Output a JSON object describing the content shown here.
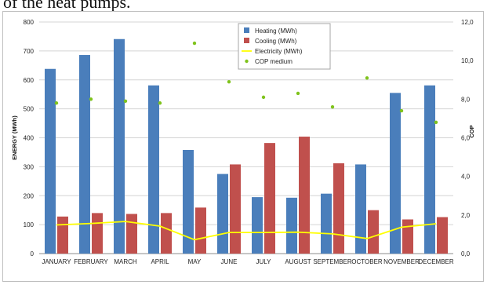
{
  "caption": "of the heat pumps.",
  "chart_data": {
    "type": "bar",
    "categories": [
      "JANUARY",
      "FEBRUARY",
      "MARCH",
      "APRIL",
      "MAY",
      "JUNE",
      "JULY",
      "AUGUST",
      "SEPTEMBER",
      "OCTOBER",
      "NOVEMBER",
      "DECEMBER"
    ],
    "series": [
      {
        "name": "Heating (MWh)",
        "kind": "bar",
        "axis": "left",
        "color": "#4a7ebb",
        "values": [
          638,
          686,
          741,
          581,
          358,
          275,
          195,
          193,
          207,
          308,
          555,
          581
        ]
      },
      {
        "name": "Cooling (MWh)",
        "kind": "bar",
        "axis": "left",
        "color": "#c0504d",
        "values": [
          128,
          140,
          137,
          140,
          159,
          308,
          382,
          404,
          312,
          150,
          118,
          126
        ]
      },
      {
        "name": "Electricity (MWh)",
        "kind": "line",
        "axis": "left",
        "color": "#ffff00",
        "values": [
          99,
          104,
          111,
          95,
          48,
          73,
          73,
          74,
          68,
          52,
          91,
          103
        ]
      },
      {
        "name": "COP medium",
        "kind": "scatter",
        "axis": "right",
        "color": "#7fc31c",
        "values": [
          7.8,
          8.0,
          7.9,
          7.8,
          10.9,
          8.9,
          8.1,
          8.3,
          7.6,
          9.1,
          7.4,
          6.8
        ]
      }
    ],
    "ylabel": "ENERGY (MWh)",
    "y2label": "COP",
    "ylim": [
      0,
      800
    ],
    "y2lim": [
      0,
      12
    ],
    "yticks": [
      "0",
      "100",
      "200",
      "300",
      "400",
      "500",
      "600",
      "700",
      "800"
    ],
    "y2ticks": [
      "0,0",
      "2,0",
      "4,0",
      "6,0",
      "8,0",
      "10,0",
      "12,0"
    ],
    "grid": true,
    "legend": "top-center"
  }
}
